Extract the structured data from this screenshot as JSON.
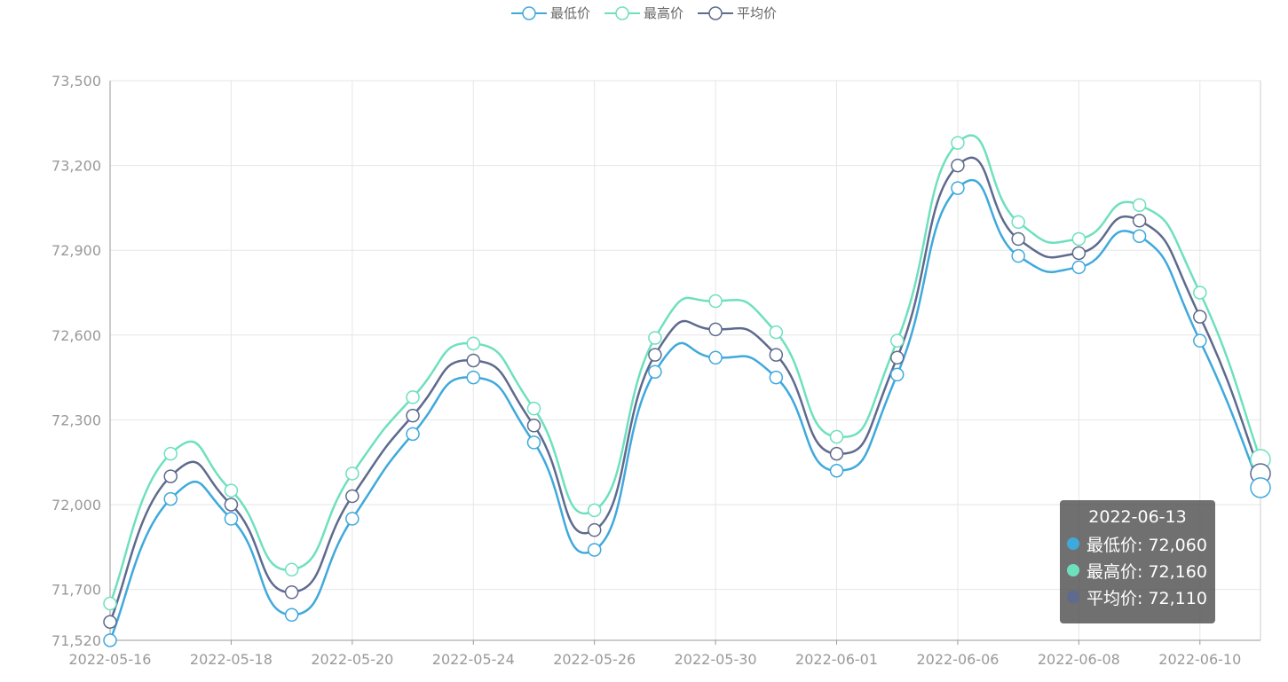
{
  "chart_data": {
    "type": "line",
    "smooth": true,
    "categories": [
      "2022-05-16",
      "2022-05-17",
      "2022-05-18",
      "2022-05-19",
      "2022-05-20",
      "2022-05-23",
      "2022-05-24",
      "2022-05-25",
      "2022-05-26",
      "2022-05-27",
      "2022-05-30",
      "2022-05-31",
      "2022-06-01",
      "2022-06-02",
      "2022-06-06",
      "2022-06-07",
      "2022-06-08",
      "2022-06-09",
      "2022-06-10",
      "2022-06-13"
    ],
    "x_tick_labels": [
      "2022-05-16",
      "2022-05-18",
      "2022-05-20",
      "2022-05-24",
      "2022-05-26",
      "2022-05-30",
      "2022-06-01",
      "2022-06-06",
      "2022-06-08",
      "2022-06-10"
    ],
    "y_ticks": [
      71520,
      71700,
      72000,
      72300,
      72600,
      72900,
      73200,
      73500
    ],
    "y_tick_labels": [
      "71,520",
      "71,700",
      "72,000",
      "72,300",
      "72,600",
      "72,900",
      "73,200",
      "73,500"
    ],
    "ylim": [
      71520,
      73500
    ],
    "grid": true,
    "legend_position": "top-center",
    "series": [
      {
        "name": "最低价",
        "color": "#3fa9dc",
        "values": [
          71520,
          72020,
          71950,
          71610,
          71950,
          72250,
          72450,
          72220,
          71840,
          72470,
          72520,
          72450,
          72120,
          72460,
          73120,
          72880,
          72840,
          72950,
          72580,
          72060
        ]
      },
      {
        "name": "最高价",
        "color": "#6ee0be",
        "values": [
          71650,
          72180,
          72050,
          71770,
          72110,
          72380,
          72570,
          72340,
          71980,
          72590,
          72720,
          72610,
          72240,
          72580,
          73280,
          73000,
          72940,
          73060,
          72750,
          72160
        ]
      },
      {
        "name": "平均价",
        "color": "#5e6a8e",
        "values": [
          71585,
          72100,
          72000,
          71690,
          72030,
          72315,
          72510,
          72280,
          71910,
          72530,
          72620,
          72530,
          72180,
          72520,
          73200,
          72940,
          72890,
          73005,
          72665,
          72110
        ]
      }
    ]
  },
  "tooltip": {
    "date": "2022-06-13",
    "rows": [
      {
        "label": "最低价: 72,060",
        "color": "#3fa9dc"
      },
      {
        "label": "最高价: 72,160",
        "color": "#6ee0be"
      },
      {
        "label": "平均价: 72,110",
        "color": "#5e6a8e"
      }
    ]
  }
}
